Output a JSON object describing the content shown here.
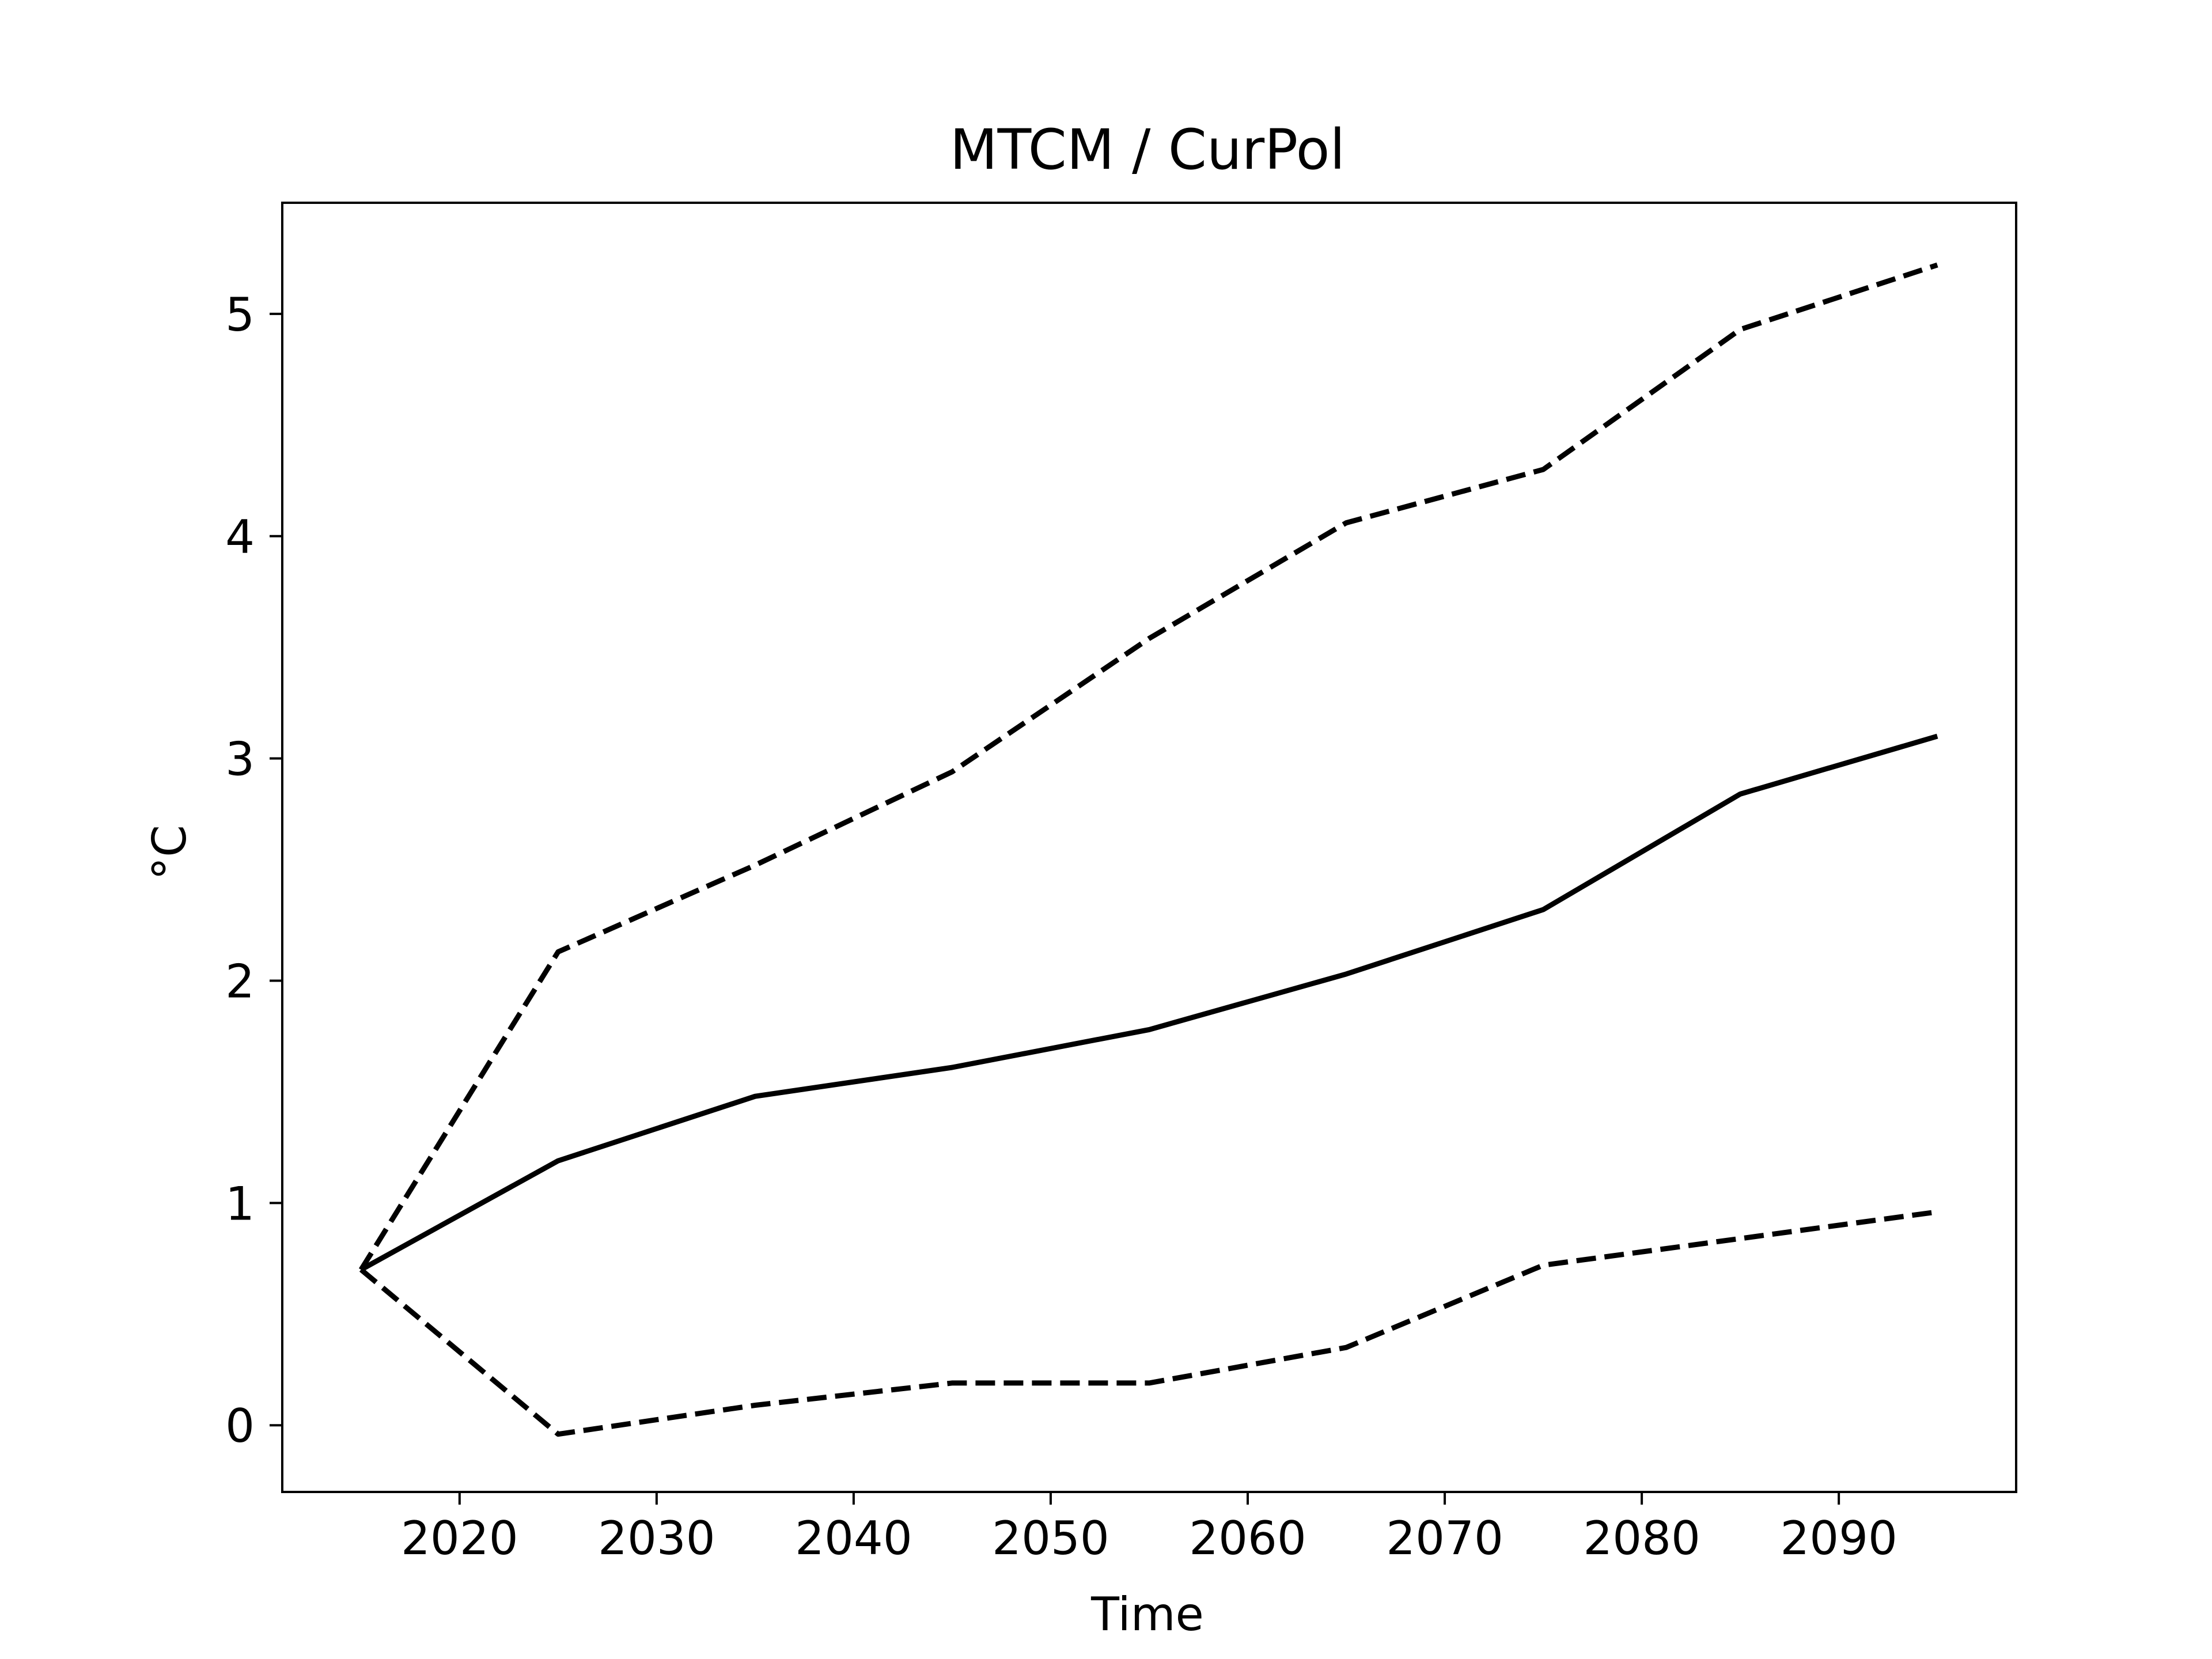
{
  "chart_data": {
    "type": "line",
    "title": "MTCM / CurPol",
    "xlabel": "Time",
    "ylabel": "°C",
    "xlim": [
      2011,
      2099
    ],
    "ylim": [
      -0.3,
      5.5
    ],
    "x_ticks": [
      2020,
      2030,
      2040,
      2050,
      2060,
      2070,
      2080,
      2090
    ],
    "y_ticks": [
      0,
      1,
      2,
      3,
      4,
      5
    ],
    "grid": false,
    "legend": "none",
    "x": [
      2015,
      2025,
      2035,
      2045,
      2055,
      2065,
      2075,
      2085,
      2095
    ],
    "series": [
      {
        "style": "solid",
        "color": "#000000",
        "values": [
          0.7,
          1.19,
          1.48,
          1.61,
          1.78,
          2.03,
          2.32,
          2.84,
          3.1
        ]
      },
      {
        "style": "dashed",
        "color": "#000000",
        "values": [
          0.7,
          2.13,
          2.52,
          2.94,
          3.54,
          4.06,
          4.3,
          4.93,
          5.22
        ]
      },
      {
        "style": "dashed",
        "color": "#000000",
        "values": [
          0.7,
          -0.04,
          0.09,
          0.19,
          0.19,
          0.35,
          0.72,
          0.84,
          0.96
        ]
      }
    ]
  }
}
